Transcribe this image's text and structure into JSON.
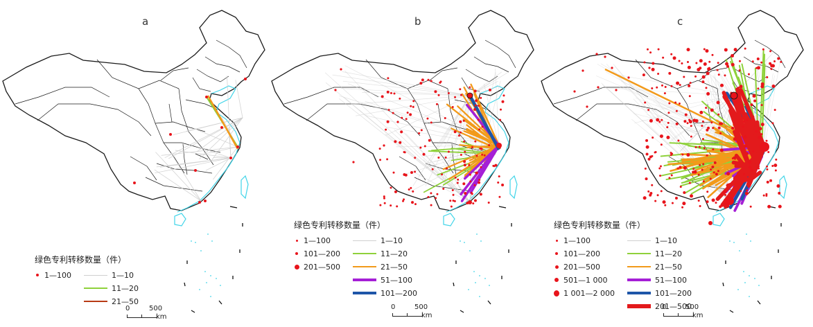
{
  "legend_title": "绿色专利转移数量（件）",
  "scale": {
    "zero": "0",
    "mid": "500",
    "unit": "km"
  },
  "colors": {
    "border": "#1a1a1a",
    "coast": "#3fd4e8",
    "dot": "#e8141b",
    "l1": "#cfcfcf",
    "l2": "#8ed13a",
    "l3": "#f29a1a",
    "l4": "#a51fd6",
    "l5": "#1e56a8",
    "l6": "#e31a1c",
    "l_a3": "#b83a14"
  },
  "panels": [
    {
      "id": "a",
      "label": "a",
      "dot_legend": [
        {
          "label": "1—100",
          "size": 4
        }
      ],
      "line_legend": [
        {
          "label": "1—10",
          "color": "#cfcfcf",
          "width": 1
        },
        {
          "label": "11—20",
          "color": "#8ed13a",
          "width": 2
        },
        {
          "label": "21—50",
          "color": "#b83a14",
          "width": 2.5
        }
      ]
    },
    {
      "id": "b",
      "label": "b",
      "dot_legend": [
        {
          "label": "1—100",
          "size": 3
        },
        {
          "label": "101—200",
          "size": 4
        },
        {
          "label": "201—500",
          "size": 7
        }
      ],
      "line_legend": [
        {
          "label": "1—10",
          "color": "#cfcfcf",
          "width": 1
        },
        {
          "label": "11—20",
          "color": "#8ed13a",
          "width": 2
        },
        {
          "label": "21—50",
          "color": "#f29a1a",
          "width": 2.5
        },
        {
          "label": "51—100",
          "color": "#a51fd6",
          "width": 3.5
        },
        {
          "label": "101—200",
          "color": "#1e56a8",
          "width": 4.5
        }
      ]
    },
    {
      "id": "c",
      "label": "c",
      "dot_legend": [
        {
          "label": "1—100",
          "size": 3
        },
        {
          "label": "101—200",
          "size": 4
        },
        {
          "label": "201—500",
          "size": 5
        },
        {
          "label": "501—1 000",
          "size": 6
        },
        {
          "label": "1 001—2 000",
          "size": 9
        }
      ],
      "line_legend": [
        {
          "label": "1—10",
          "color": "#cfcfcf",
          "width": 1
        },
        {
          "label": "11—20",
          "color": "#8ed13a",
          "width": 2
        },
        {
          "label": "21—50",
          "color": "#f29a1a",
          "width": 2.5
        },
        {
          "label": "51—100",
          "color": "#a51fd6",
          "width": 3.5
        },
        {
          "label": "101—200",
          "color": "#1e56a8",
          "width": 4.5
        },
        {
          "label": "201—500",
          "color": "#e31a1c",
          "width": 5.5
        }
      ]
    }
  ]
}
